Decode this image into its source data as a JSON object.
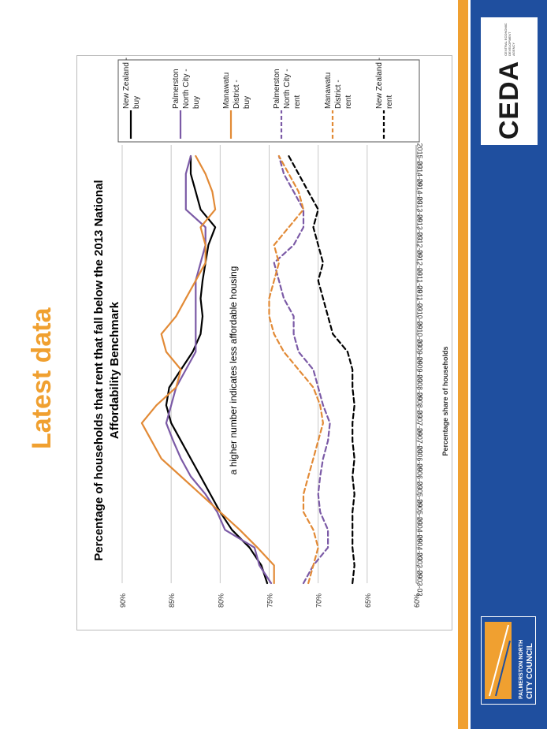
{
  "slide": {
    "title": "Latest data",
    "logo_ceda": "CEDA",
    "logo_ceda_sub": "CENTRAL ECONOMIC DEVELOPMENT AGENCY",
    "logo_council_line1": "PALMERSTON NORTH",
    "logo_council_line2": "CITY COUNCIL",
    "colors": {
      "accent_orange": "#f0a030",
      "brand_blue": "#1f4f9f"
    }
  },
  "chart_data": {
    "type": "line",
    "title": "Percentage of households that rent that fall below the 2013 National Affordability Benchmark",
    "ylabel": "Percentage share of households",
    "xlabel": "",
    "annotation": "a higher number indicates less affordable housing",
    "ylim": [
      60,
      90
    ],
    "yticks": [
      "60%",
      "65%",
      "70%",
      "75%",
      "80%",
      "85%",
      "90%"
    ],
    "grid": true,
    "legend_position": "right",
    "categories": [
      "2003-03",
      "2003-09",
      "2004-03",
      "2004-09",
      "2005-03",
      "2005-09",
      "2006-03",
      "2006-09",
      "2007-03",
      "2007-09",
      "2008-03",
      "2008-09",
      "2009-03",
      "2009-09",
      "2010-03",
      "2010-09",
      "2011-03",
      "2011-09",
      "2012-03",
      "2012-09",
      "2013-03",
      "2013-09",
      "2014-03",
      "2014-09",
      "2015-03"
    ],
    "series": [
      {
        "name": "New Zealand - buy",
        "color": "#000000",
        "dash": false,
        "values": [
          75.2,
          75.8,
          77.0,
          78.8,
          80.0,
          81.0,
          82.0,
          83.0,
          84.0,
          85.0,
          85.5,
          85.2,
          84.0,
          82.8,
          82.0,
          81.8,
          82.0,
          81.8,
          81.5,
          81.2,
          80.5,
          82.0,
          82.5,
          83.0,
          83.0
        ]
      },
      {
        "name": "Palmerston North City - buy",
        "color": "#7b5aa6",
        "dash": false,
        "values": [
          74.8,
          76.0,
          76.5,
          79.5,
          80.3,
          81.5,
          83.0,
          84.0,
          84.8,
          85.5,
          85.0,
          84.5,
          83.5,
          82.5,
          82.5,
          82.5,
          82.5,
          82.5,
          82.0,
          81.5,
          81.5,
          83.5,
          83.5,
          83.5,
          83.0
        ]
      },
      {
        "name": "Manawatu District - buy",
        "color": "#e28a36",
        "dash": false,
        "values": [
          74.5,
          74.5,
          76.2,
          78.0,
          80.0,
          82.0,
          84.0,
          86.0,
          87.0,
          88.0,
          86.5,
          84.5,
          84.0,
          85.5,
          86.0,
          84.5,
          83.5,
          82.5,
          81.5,
          81.5,
          82.0,
          80.5,
          80.8,
          81.5,
          82.5
        ]
      },
      {
        "name": "Palmerston North City - rent",
        "color": "#7b5aa6",
        "dash": true,
        "values": [
          71.5,
          70.5,
          69.0,
          69.0,
          69.8,
          70.0,
          69.8,
          69.5,
          69.0,
          68.8,
          69.5,
          70.0,
          70.5,
          72.0,
          72.5,
          72.5,
          73.5,
          74.0,
          74.5,
          72.5,
          71.5,
          71.5,
          72.5,
          73.5,
          74.0
        ]
      },
      {
        "name": "Manawatu District - rent",
        "color": "#e28a36",
        "dash": true,
        "values": [
          71.0,
          70.5,
          70.0,
          70.5,
          71.5,
          71.5,
          71.0,
          70.5,
          70.0,
          69.5,
          69.8,
          70.5,
          72.0,
          73.5,
          74.5,
          75.0,
          75.0,
          74.5,
          74.0,
          74.5,
          73.0,
          71.5,
          72.0,
          73.0,
          74.0
        ]
      },
      {
        "name": "New Zealand - rent",
        "color": "#000000",
        "dash": true,
        "values": [
          66.5,
          66.3,
          66.5,
          66.5,
          66.5,
          66.3,
          66.5,
          66.3,
          66.5,
          66.5,
          66.3,
          66.5,
          66.5,
          67.0,
          68.5,
          69.0,
          69.5,
          70.0,
          69.5,
          70.0,
          70.5,
          70.0,
          71.0,
          72.0,
          73.0
        ]
      }
    ]
  }
}
